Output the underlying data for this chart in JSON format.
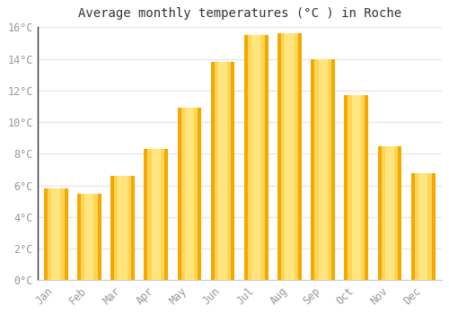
{
  "title": "Average monthly temperatures (°C ) in Roche",
  "months": [
    "Jan",
    "Feb",
    "Mar",
    "Apr",
    "May",
    "Jun",
    "Jul",
    "Aug",
    "Sep",
    "Oct",
    "Nov",
    "Dec"
  ],
  "values": [
    5.8,
    5.5,
    6.6,
    8.3,
    10.9,
    13.8,
    15.5,
    15.6,
    14.0,
    11.7,
    8.5,
    6.8
  ],
  "bar_color_outer": "#F5A800",
  "bar_color_mid": "#FFD555",
  "bar_color_inner": "#FFE580",
  "background_color": "#FFFFFF",
  "plot_bg_color": "#FFFFFF",
  "grid_color": "#E8E8E8",
  "ylim": [
    0,
    16
  ],
  "ytick_step": 2,
  "title_fontsize": 10,
  "tick_fontsize": 8.5,
  "tick_font_color": "#999999"
}
